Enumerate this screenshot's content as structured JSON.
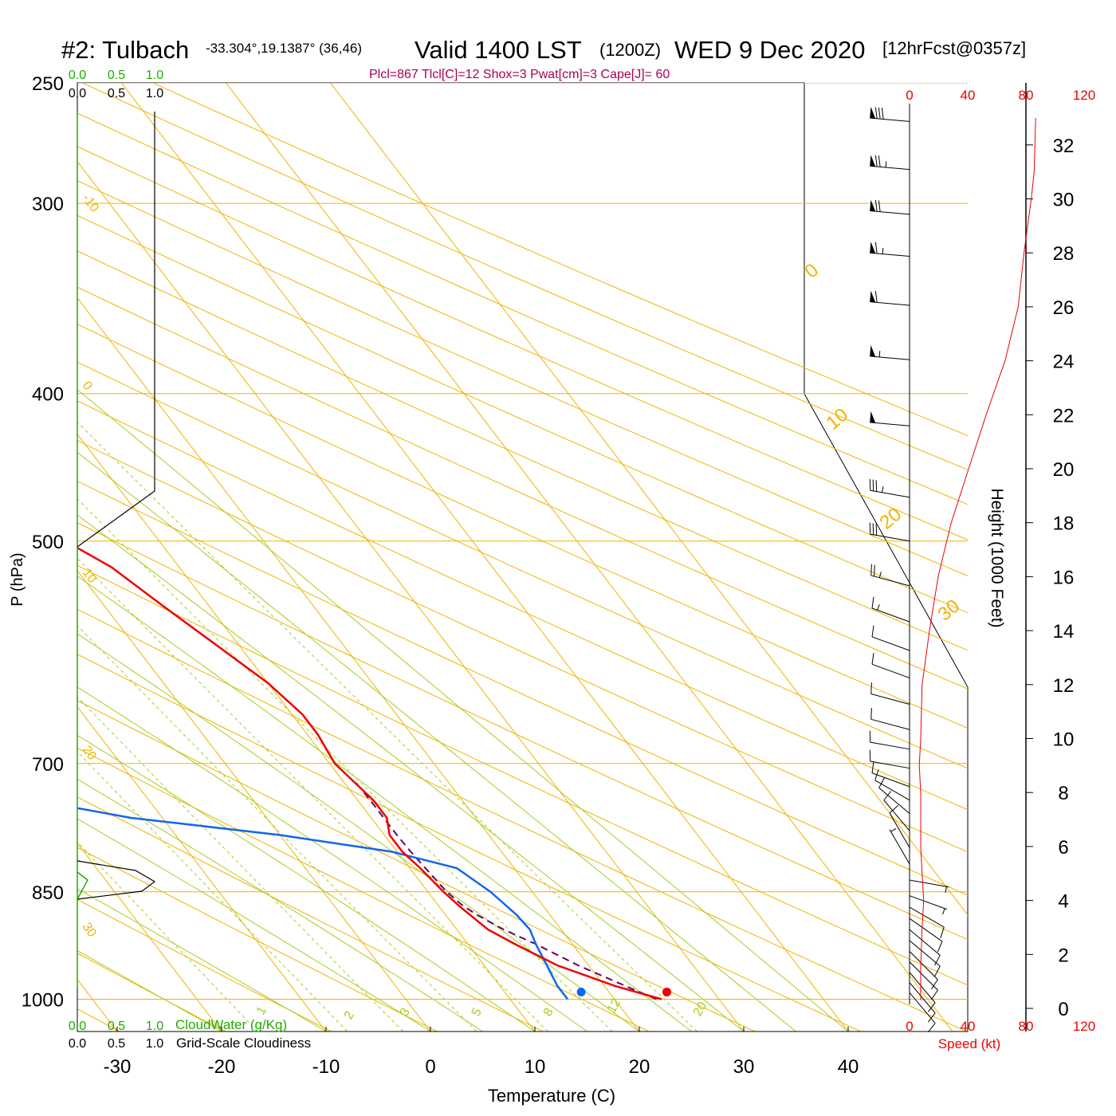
{
  "header": {
    "station": "#2: Tulbach",
    "coords": "-33.304°,19.1387° (36,46)",
    "valid": "Valid 1400 LST",
    "zulu": "(1200Z)",
    "date": "WED 9 Dec 2020",
    "forecast": "[12hrFcst@0357z]",
    "indices": "Plcl=867 Tlcl[C]=12 Shox=3 Pwat[cm]=3 Cape[J]= 60"
  },
  "colors": {
    "temperature": "#ee0000",
    "dewpoint": "#1166ee",
    "parcel": "#660066",
    "isobar": "#f0b400",
    "dry_adiabat": "#f0b400",
    "moist_adiabat": "#a8cc22",
    "mixing_ratio": "#a8cc22",
    "cloud_water": "#22aa00",
    "speed": "#ee0000",
    "indices": "#aa0055"
  },
  "chart_data": {
    "type": "skew-t",
    "xlabel": "Temperature (C)",
    "ylabel": "P (hPa)",
    "right_label": "Height (1000 Feet)",
    "xlim": [
      -35,
      45
    ],
    "ylim": [
      1050,
      250
    ],
    "x_ticks": [
      "-30",
      "-20",
      "-10",
      "0",
      "10",
      "20",
      "30",
      "40"
    ],
    "p_ticks": [
      250,
      300,
      400,
      500,
      700,
      850,
      1000
    ],
    "height_ticks": [
      0,
      2,
      4,
      6,
      8,
      10,
      12,
      14,
      16,
      18,
      20,
      22,
      24,
      26,
      28,
      30,
      32
    ],
    "dry_adiabat_labels": [
      "-10",
      "0",
      "10",
      "20",
      "30",
      "0",
      "10",
      "20",
      "30"
    ],
    "mixing_ratio_labels": [
      "1",
      "2",
      "3",
      "5",
      "8",
      "12",
      "20"
    ],
    "series": [
      {
        "key": "temperature",
        "points": [
          [
            1000,
            24.5
          ],
          [
            980,
            21.0
          ],
          [
            950,
            17.0
          ],
          [
            920,
            14.5
          ],
          [
            900,
            13.0
          ],
          [
            870,
            12.0
          ],
          [
            850,
            11.5
          ],
          [
            820,
            11.0
          ],
          [
            800,
            10.5
          ],
          [
            780,
            10.5
          ],
          [
            760,
            11.5
          ],
          [
            740,
            11.5
          ],
          [
            720,
            11.0
          ],
          [
            700,
            10.5
          ],
          [
            670,
            11.0
          ],
          [
            650,
            11.0
          ],
          [
            620,
            10.0
          ],
          [
            580,
            7.5
          ],
          [
            550,
            5.5
          ],
          [
            520,
            3.5
          ],
          [
            500,
            1.0
          ],
          [
            470,
            -1.5
          ],
          [
            450,
            -3.5
          ],
          [
            430,
            -5.5
          ],
          [
            400,
            -8.0
          ],
          [
            370,
            -11.0
          ],
          [
            340,
            -14.5
          ],
          [
            300,
            -19.5
          ],
          [
            275,
            -22.0
          ],
          [
            260,
            -24.0
          ]
        ]
      },
      {
        "key": "dewpoint",
        "points": [
          [
            1000,
            15.5
          ],
          [
            980,
            15.5
          ],
          [
            950,
            16.0
          ],
          [
            920,
            16.5
          ],
          [
            900,
            17.0
          ],
          [
            880,
            16.8
          ],
          [
            850,
            16.0
          ],
          [
            830,
            15.0
          ],
          [
            820,
            14.5
          ],
          [
            800,
            9.5
          ],
          [
            780,
            0.0
          ],
          [
            760,
            -13.0
          ],
          [
            740,
            -21.0
          ],
          [
            720,
            -24.0
          ],
          [
            700,
            -24.0
          ],
          [
            670,
            -23.5
          ],
          [
            650,
            -24.0
          ],
          [
            620,
            -27.0
          ],
          [
            600,
            -26.5
          ],
          [
            570,
            -23.5
          ],
          [
            550,
            -17.5
          ],
          [
            520,
            -10.0
          ],
          [
            500,
            -7.0
          ],
          [
            470,
            -4.0
          ],
          [
            450,
            -6.0
          ],
          [
            430,
            -8.0
          ],
          [
            400,
            -11.0
          ],
          [
            370,
            -15.0
          ],
          [
            340,
            -18.0
          ],
          [
            300,
            -24.0
          ],
          [
            260,
            -29.0
          ]
        ]
      },
      {
        "key": "parcel",
        "points": [
          [
            1000,
            24.0
          ],
          [
            980,
            22.0
          ],
          [
            950,
            19.0
          ],
          [
            920,
            16.5
          ],
          [
            900,
            14.5
          ],
          [
            880,
            13.0
          ],
          [
            867,
            12.3
          ],
          [
            850,
            11.8
          ],
          [
            820,
            11.5
          ],
          [
            800,
            11.3
          ],
          [
            780,
            11.2
          ],
          [
            760,
            11.2
          ],
          [
            740,
            11.2
          ],
          [
            720,
            11.1
          ]
        ]
      }
    ],
    "surface_points": [
      {
        "p": 1000,
        "t": 25.0,
        "kind": "temperature"
      },
      {
        "p": 1000,
        "t": 16.8,
        "kind": "dewpoint"
      }
    ],
    "wind_speed_axis": {
      "label": "Speed (kt)",
      "ticks": [
        "0",
        "40",
        "80",
        "120"
      ]
    },
    "wind_speed_profile": [
      [
        0.3,
        0
      ],
      [
        1.5,
        0
      ],
      [
        3,
        1
      ],
      [
        4,
        2
      ],
      [
        5,
        1
      ],
      [
        6,
        0
      ],
      [
        7,
        0
      ],
      [
        8,
        0
      ],
      [
        9,
        -1
      ],
      [
        10,
        0
      ],
      [
        12,
        1
      ],
      [
        14,
        6
      ],
      [
        16,
        12
      ],
      [
        18,
        21
      ],
      [
        20,
        33
      ],
      [
        22,
        45
      ],
      [
        24,
        58
      ],
      [
        26,
        67
      ],
      [
        28,
        71
      ],
      [
        30,
        76
      ],
      [
        31,
        78
      ],
      [
        33,
        79
      ]
    ],
    "wind_barbs": [
      {
        "p": 990,
        "speed": 10,
        "dir": 140
      },
      {
        "p": 975,
        "speed": 10,
        "dir": 140
      },
      {
        "p": 960,
        "speed": 10,
        "dir": 140
      },
      {
        "p": 945,
        "speed": 10,
        "dir": 135
      },
      {
        "p": 930,
        "speed": 10,
        "dir": 135
      },
      {
        "p": 915,
        "speed": 10,
        "dir": 130
      },
      {
        "p": 900,
        "speed": 10,
        "dir": 130
      },
      {
        "p": 885,
        "speed": 10,
        "dir": 125
      },
      {
        "p": 870,
        "speed": 10,
        "dir": 120
      },
      {
        "p": 855,
        "speed": 5,
        "dir": 110
      },
      {
        "p": 835,
        "speed": 5,
        "dir": 100
      },
      {
        "p": 815,
        "speed": 5,
        "dir": 330
      },
      {
        "p": 795,
        "speed": 10,
        "dir": 330
      },
      {
        "p": 775,
        "speed": 10,
        "dir": 320
      },
      {
        "p": 755,
        "speed": 10,
        "dir": 310
      },
      {
        "p": 740,
        "speed": 10,
        "dir": 300
      },
      {
        "p": 725,
        "speed": 10,
        "dir": 290
      },
      {
        "p": 705,
        "speed": 10,
        "dir": 280
      },
      {
        "p": 685,
        "speed": 10,
        "dir": 280
      },
      {
        "p": 665,
        "speed": 10,
        "dir": 285
      },
      {
        "p": 640,
        "speed": 10,
        "dir": 285
      },
      {
        "p": 615,
        "speed": 10,
        "dir": 290
      },
      {
        "p": 590,
        "speed": 10,
        "dir": 290
      },
      {
        "p": 565,
        "speed": 15,
        "dir": 290
      },
      {
        "p": 535,
        "speed": 25,
        "dir": 285
      },
      {
        "p": 500,
        "speed": 30,
        "dir": 280
      },
      {
        "p": 468,
        "speed": 35,
        "dir": 280
      },
      {
        "p": 420,
        "speed": 50,
        "dir": 275
      },
      {
        "p": 380,
        "speed": 55,
        "dir": 275
      },
      {
        "p": 350,
        "speed": 60,
        "dir": 275
      },
      {
        "p": 325,
        "speed": 65,
        "dir": 275
      },
      {
        "p": 305,
        "speed": 70,
        "dir": 275
      },
      {
        "p": 285,
        "speed": 75,
        "dir": 275
      },
      {
        "p": 265,
        "speed": 80,
        "dir": 275
      }
    ],
    "cloud_water": {
      "label": "CloudWater (g/Kg)",
      "ticks": [
        "0.0",
        "0.5",
        "1.0"
      ]
    },
    "cloudiness": {
      "label": "Grid-Scale Cloudiness",
      "ticks": [
        "0.0",
        "0.5",
        "1.0"
      ]
    }
  }
}
